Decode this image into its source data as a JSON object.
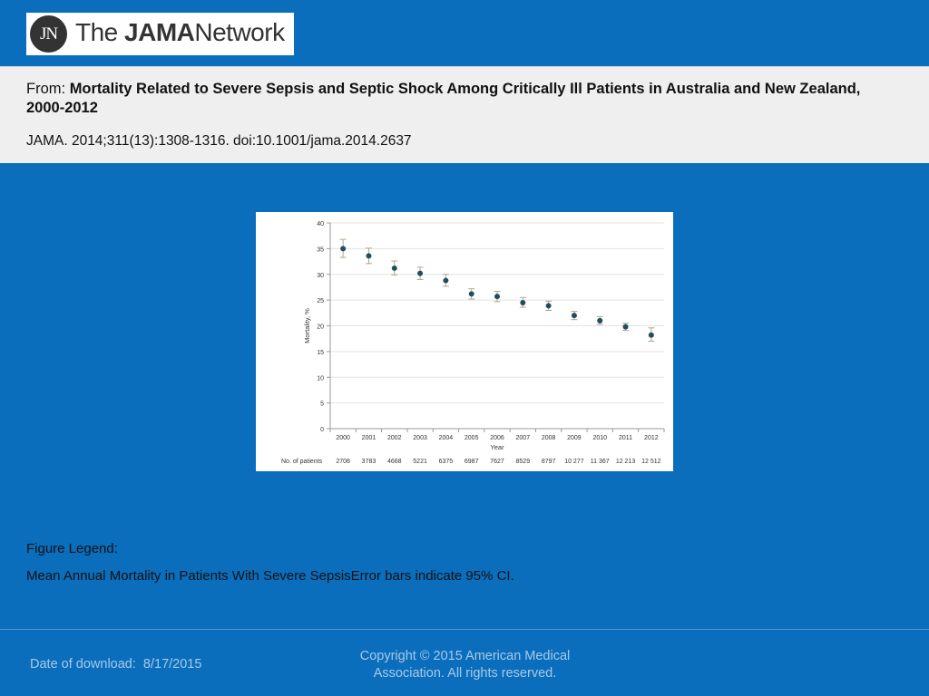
{
  "logo": {
    "monogram": "JN",
    "brand_the": "The",
    "brand_jama": "JAMA",
    "brand_network": "Network"
  },
  "header": {
    "from_label": "From:",
    "article_title": "Mortality Related to Severe Sepsis and Septic Shock Among Critically Ill Patients in Australia and New Zealand, 2000-2012",
    "citation": "JAMA. 2014;311(13):1308-1316. doi:10.1001/jama.2014.2637"
  },
  "legend": {
    "title": "Figure Legend:",
    "text": "Mean Annual Mortality in Patients With Severe SepsisError bars indicate 95% CI."
  },
  "footer": {
    "download_label": "Date of download:",
    "download_date": "8/17/2015",
    "copyright": "Copyright © 2015 American Medical Association. All rights reserved."
  },
  "colors": {
    "background": "#0a6ebd",
    "marker": "#1f4e5f",
    "errorbar": "#b5a58a"
  },
  "chart_data": {
    "type": "scatter",
    "xlabel": "Year",
    "ylabel": "Mortality, %",
    "ylim": [
      0,
      40
    ],
    "yticks": [
      0,
      5,
      10,
      15,
      20,
      25,
      30,
      35,
      40
    ],
    "grid": true,
    "categories": [
      "2000",
      "2001",
      "2002",
      "2003",
      "2004",
      "2005",
      "2006",
      "2007",
      "2008",
      "2009",
      "2010",
      "2011",
      "2012"
    ],
    "values": [
      35.0,
      33.6,
      31.2,
      30.2,
      28.8,
      26.2,
      25.7,
      24.5,
      23.9,
      22.0,
      21.0,
      19.8,
      18.2
    ],
    "ci_low": [
      33.3,
      32.1,
      29.9,
      29.0,
      27.7,
      25.2,
      24.7,
      23.6,
      23.0,
      21.2,
      20.3,
      19.1,
      17.0
    ],
    "ci_high": [
      36.8,
      35.1,
      32.6,
      31.4,
      30.0,
      27.2,
      26.7,
      25.5,
      24.8,
      22.8,
      21.8,
      20.5,
      19.6
    ],
    "patients_label": "No. of patients",
    "patients": [
      "2708",
      "3783",
      "4668",
      "5221",
      "6375",
      "6987",
      "7627",
      "8529",
      "8797",
      "10 277",
      "11 367",
      "12 213",
      "12 512"
    ]
  }
}
